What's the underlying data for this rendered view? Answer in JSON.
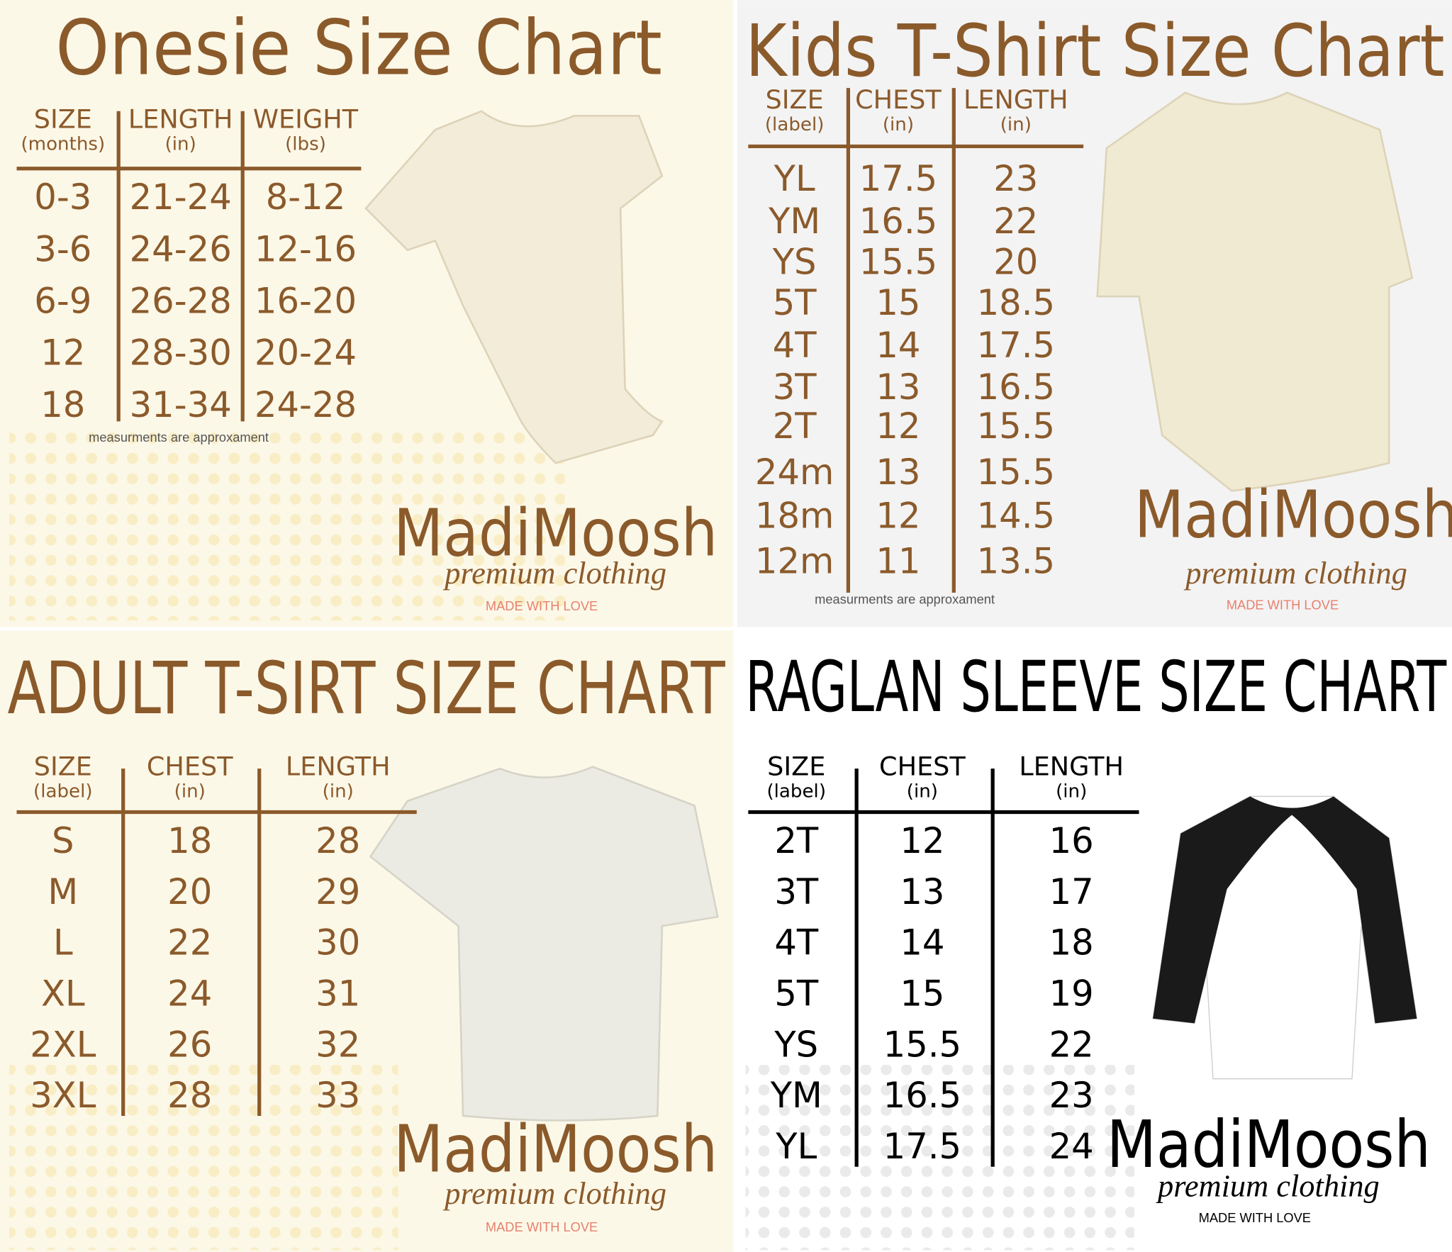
{
  "panels": [
    {
      "title": "Onesie Size Chart",
      "headers": [
        {
          "label": "SIZE",
          "unit": "(months)"
        },
        {
          "label": "LENGTH",
          "unit": "(in)"
        },
        {
          "label": "WEIGHT",
          "unit": "(lbs)"
        }
      ],
      "rows": [
        [
          "0-3",
          "21-24",
          "8-12"
        ],
        [
          "3-6",
          "24-26",
          "12-16"
        ],
        [
          "6-9",
          "26-28",
          "16-20"
        ],
        [
          "12",
          "28-30",
          "20-24"
        ],
        [
          "18",
          "31-34",
          "24-28"
        ]
      ],
      "note": "measurments are approxament",
      "brand": {
        "name": "MadiMoosh",
        "tagline": "premium clothing",
        "footer": "MADE WITH LOVE"
      }
    },
    {
      "title": "Kids T-Shirt Size Chart",
      "headers": [
        {
          "label": "SIZE",
          "unit": "(label)"
        },
        {
          "label": "CHEST",
          "unit": "(in)"
        },
        {
          "label": "LENGTH",
          "unit": "(in)"
        }
      ],
      "rows": [
        [
          "YL",
          "17.5",
          "23"
        ],
        [
          "YM",
          "16.5",
          "22"
        ],
        [
          "YS",
          "15.5",
          "20"
        ],
        [
          "5T",
          "15",
          "18.5"
        ],
        [
          "4T",
          "14",
          "17.5"
        ],
        [
          "3T",
          "13",
          "16.5"
        ],
        [
          "2T",
          "12",
          "15.5"
        ],
        [
          "24m",
          "13",
          "15.5"
        ],
        [
          "18m",
          "12",
          "14.5"
        ],
        [
          "12m",
          "11",
          "13.5"
        ]
      ],
      "note": "measurments are approxament",
      "brand": {
        "name": "MadiMoosh",
        "tagline": "premium clothing",
        "footer": "MADE WITH LOVE"
      }
    },
    {
      "title": "ADULT T-SIRT SIZE CHART",
      "headers": [
        {
          "label": "SIZE",
          "unit": "(label)"
        },
        {
          "label": "CHEST",
          "unit": "(in)"
        },
        {
          "label": "LENGTH",
          "unit": "(in)"
        }
      ],
      "rows": [
        [
          "S",
          "18",
          "28"
        ],
        [
          "M",
          "20",
          "29"
        ],
        [
          "L",
          "22",
          "30"
        ],
        [
          "XL",
          "24",
          "31"
        ],
        [
          "2XL",
          "26",
          "32"
        ],
        [
          "3XL",
          "28",
          "33"
        ]
      ],
      "brand": {
        "name": "MadiMoosh",
        "tagline": "premium clothing",
        "footer": "MADE WITH LOVE"
      }
    },
    {
      "title": "RAGLAN SLEEVE SIZE CHART",
      "headers": [
        {
          "label": "SIZE",
          "unit": "(label)"
        },
        {
          "label": "CHEST",
          "unit": "(in)"
        },
        {
          "label": "LENGTH",
          "unit": "(in)"
        }
      ],
      "rows": [
        [
          "2T",
          "12",
          "16"
        ],
        [
          "3T",
          "13",
          "17"
        ],
        [
          "4T",
          "14",
          "18"
        ],
        [
          "5T",
          "15",
          "19"
        ],
        [
          "YS",
          "15.5",
          "22"
        ],
        [
          "YM",
          "16.5",
          "23"
        ],
        [
          "YL",
          "17.5",
          "24"
        ]
      ],
      "brand": {
        "name": "MadiMoosh",
        "tagline": "premium clothing",
        "footer": "MADE WITH LOVE"
      }
    }
  ]
}
